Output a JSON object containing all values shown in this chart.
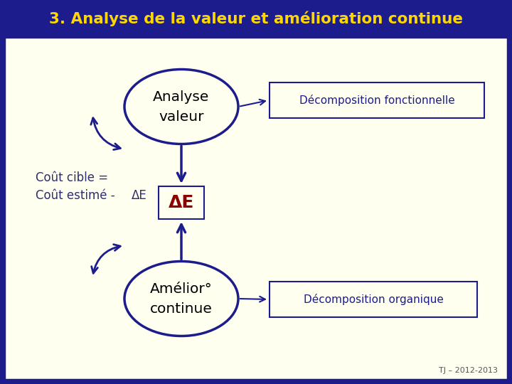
{
  "title": "3. Analyse de la valeur et amélioration continue",
  "title_color": "#FFD700",
  "header_bg": "#1C1C8C",
  "body_bg": "#FFFFF0",
  "border_color": "#1C1C8C",
  "circle1_text_line1": "Analyse",
  "circle1_text_line2": "valeur",
  "circle2_text_line1": "Amélior°",
  "circle2_text_line2": "continue",
  "ellipse_color": "#1C1C8C",
  "ellipse_fill": "#FFFFF0",
  "delta_text": "ΔE",
  "delta_color": "#8B0000",
  "box_color": "#1C1C8C",
  "box_fill": "#FFFFF0",
  "rect1_text": "Décomposition fonctionnelle",
  "rect2_text": "Décomposition organique",
  "rect_text_color": "#1C1C8C",
  "left_text_line1": "Coût cible =",
  "left_text_line2": "Coût estimé -",
  "left_text_delta": "ΔE",
  "left_text_color": "#2F2F6F",
  "arrow_color": "#1C1C8C",
  "curved_arrow_color": "#1C1C8C",
  "footer": "TJ – 2012-2013",
  "footer_color": "#555555"
}
